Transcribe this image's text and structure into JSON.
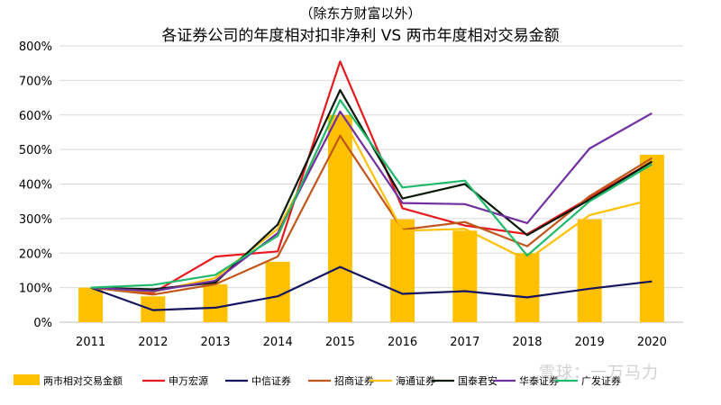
{
  "chart_data": {
    "type": "bar+line",
    "title_line1": "（除东方财富以外）",
    "title_line2": "各证券公司的年度相对扣非净利 VS 两市年度相对交易金额",
    "categories": [
      "2011",
      "2012",
      "2013",
      "2014",
      "2015",
      "2016",
      "2017",
      "2018",
      "2019",
      "2020"
    ],
    "ylim": [
      0,
      800
    ],
    "yticks": [
      0,
      100,
      200,
      300,
      400,
      500,
      600,
      700,
      800
    ],
    "ytick_labels": [
      "0%",
      "100%",
      "200%",
      "300%",
      "400%",
      "500%",
      "600%",
      "700%",
      "800%"
    ],
    "grid": true,
    "legend_position": "bottom",
    "bars": {
      "name": "两市相对交易金额",
      "color": "#FFC000",
      "values": [
        100,
        75,
        110,
        175,
        600,
        298,
        265,
        200,
        298,
        485
      ]
    },
    "series": [
      {
        "name": "申万宏源",
        "color": "#E5191E",
        "values": [
          100,
          85,
          190,
          205,
          755,
          330,
          280,
          255,
          360,
          465
        ]
      },
      {
        "name": "中信证券",
        "color": "#141460",
        "values": [
          100,
          35,
          42,
          75,
          160,
          82,
          90,
          72,
          97,
          118
        ]
      },
      {
        "name": "招商证券",
        "color": "#C0561B",
        "values": [
          100,
          80,
          110,
          190,
          540,
          268,
          290,
          220,
          365,
          475
        ]
      },
      {
        "name": "海通证券",
        "color": "#FFC000",
        "values": [
          100,
          88,
          128,
          270,
          605,
          265,
          270,
          180,
          310,
          355
        ]
      },
      {
        "name": "国泰君安",
        "color": "#0A1A0A",
        "values": [
          100,
          95,
          115,
          283,
          672,
          358,
          400,
          252,
          355,
          465
        ]
      },
      {
        "name": "华泰证券",
        "color": "#7030A0",
        "values": [
          100,
          90,
          120,
          258,
          610,
          345,
          342,
          287,
          503,
          605
        ]
      },
      {
        "name": "广发证券",
        "color": "#1EB96B",
        "values": [
          100,
          108,
          137,
          250,
          643,
          390,
          410,
          193,
          350,
          457
        ]
      }
    ],
    "watermark": "雪球：一万马力"
  }
}
